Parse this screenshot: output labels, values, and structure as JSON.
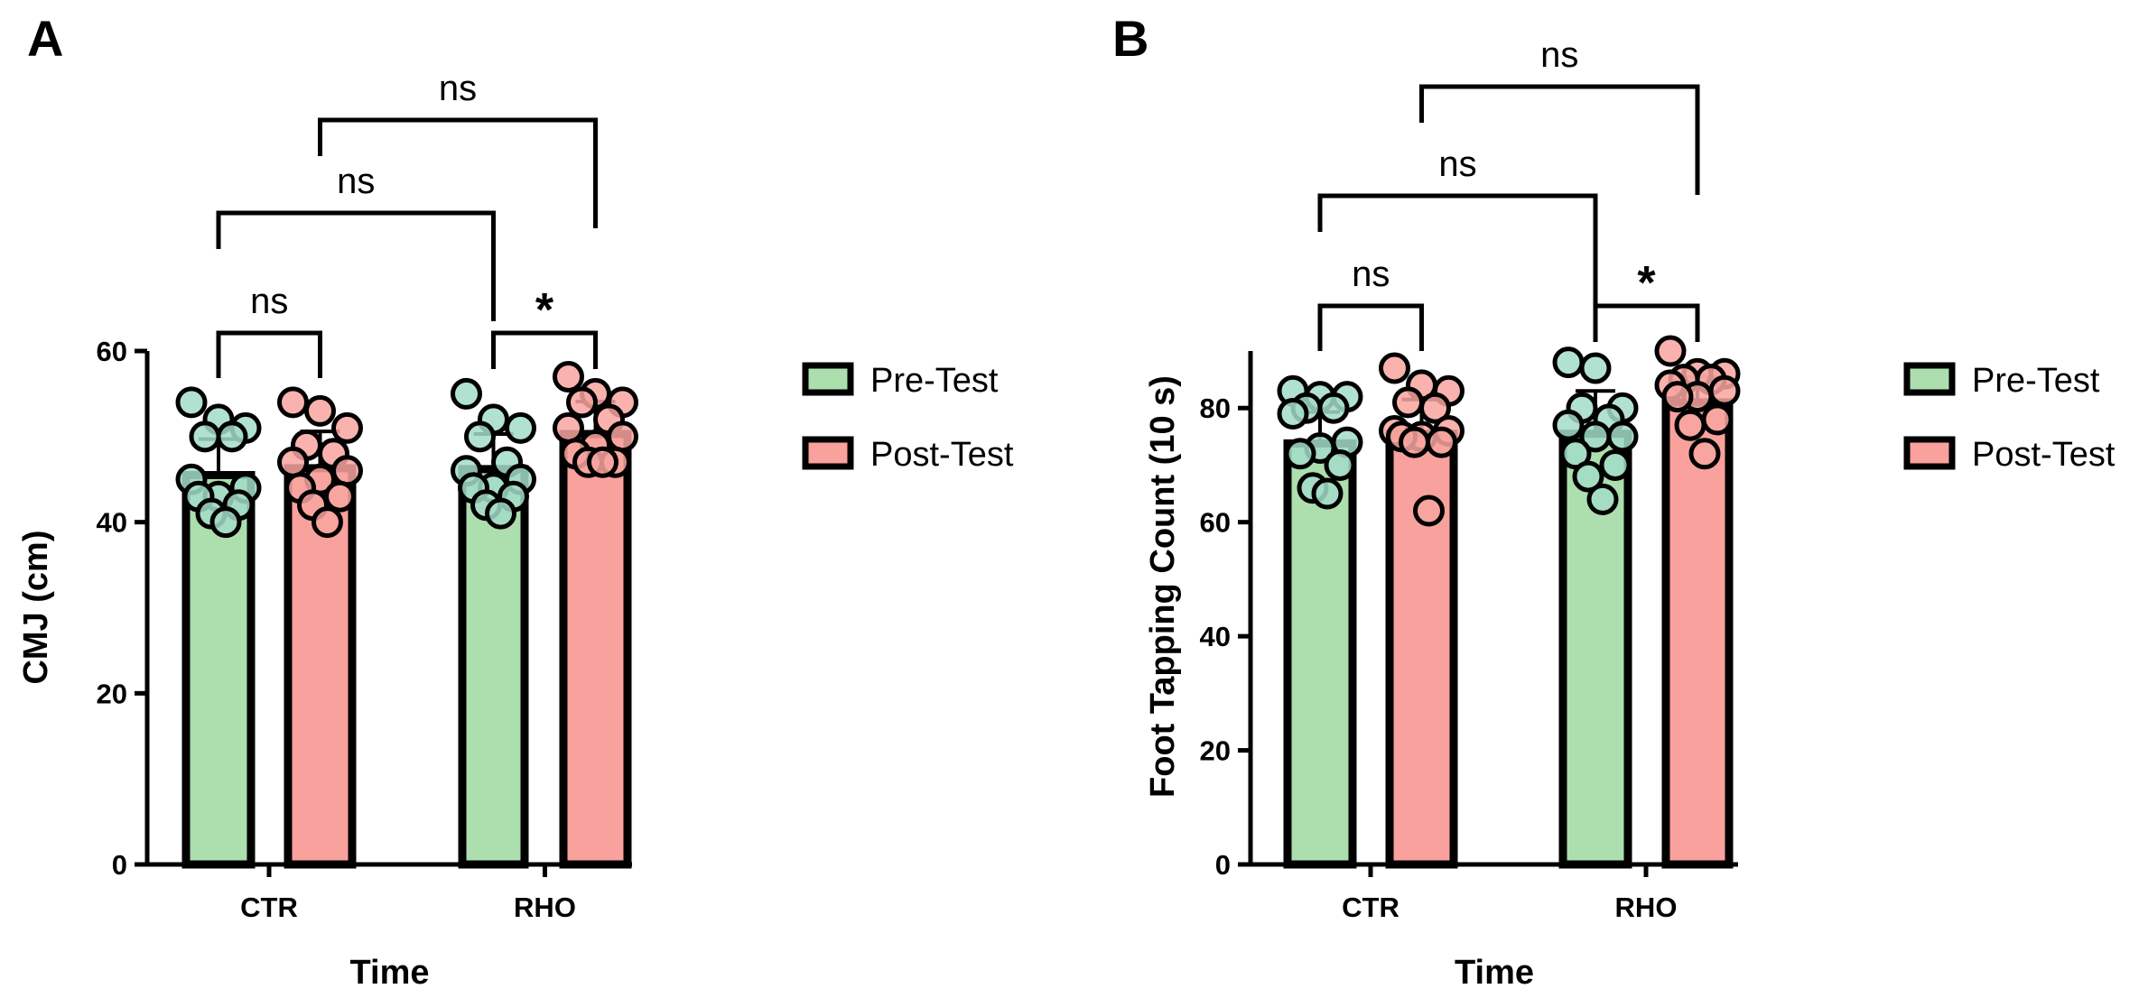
{
  "colors": {
    "pre_bar": "#acdeae",
    "post_bar": "#f9a19d",
    "pre_point": "#a3dcc8",
    "post_point": "#f8a4a0",
    "axis": "#000000"
  },
  "chart_data": [
    {
      "type": "bar",
      "panel_label": "A",
      "xlabel": "Time",
      "ylabel": "CMJ (cm)",
      "ylim": [
        0,
        60
      ],
      "yticks": [
        "0",
        "20",
        "40",
        "60"
      ],
      "yticks_values": [
        0,
        20,
        40,
        60
      ],
      "categories": [
        "CTR",
        "RHO"
      ],
      "legend": [
        "Pre-Test",
        "Post-Test"
      ],
      "legend_position": "right",
      "series": [
        {
          "name": "Pre-Test",
          "values": [
            45.5,
            46.2
          ],
          "sd": [
            4.2,
            4.1
          ],
          "points": [
            [
              54,
              52,
              51,
              50,
              50,
              45,
              44,
              43,
              43,
              42,
              41,
              40
            ],
            [
              55,
              52,
              51,
              50,
              47,
              46,
              45,
              44,
              44,
              43,
              42,
              41
            ]
          ]
        },
        {
          "name": "Post-Test",
          "values": [
            46.3,
            50.3
          ],
          "sd": [
            4.3,
            3.8
          ],
          "points": [
            [
              54,
              53,
              51,
              49,
              48,
              47,
              46,
              45,
              44,
              43,
              42,
              40
            ],
            [
              57,
              55,
              54,
              54,
              52,
              51,
              50,
              49,
              48,
              47,
              47,
              47
            ]
          ]
        }
      ],
      "comparisons": [
        {
          "from": "CTR Pre-Test",
          "to": "CTR Post-Test",
          "label": "ns"
        },
        {
          "from": "CTR Pre-Test",
          "to": "RHO Pre-Test",
          "label": "ns"
        },
        {
          "from": "CTR Post-Test",
          "to": "RHO Post-Test",
          "label": "ns"
        },
        {
          "from": "RHO Pre-Test",
          "to": "RHO Post-Test",
          "label": "*"
        }
      ]
    },
    {
      "type": "bar",
      "panel_label": "B",
      "xlabel": "Time",
      "ylabel": "Foot Tapping Count (10 s)",
      "ylim": [
        0,
        90
      ],
      "yticks": [
        "0",
        "20",
        "40",
        "60",
        "80"
      ],
      "yticks_values": [
        0,
        20,
        40,
        60,
        80
      ],
      "categories": [
        "CTR",
        "RHO"
      ],
      "legend": [
        "Pre-Test",
        "Post-Test"
      ],
      "legend_position": "right",
      "series": [
        {
          "name": "Pre-Test",
          "values": [
            73.8,
            75.5
          ],
          "sd": [
            5.5,
            7.5
          ],
          "points": [
            [
              83,
              82,
              82,
              80,
              80,
              79,
              74,
              73,
              72,
              70,
              66,
              65
            ],
            [
              88,
              87,
              80,
              80,
              78,
              77,
              75,
              75,
              72,
              70,
              68,
              64
            ]
          ]
        },
        {
          "name": "Post-Test",
          "values": [
            75.5,
            81.0
          ],
          "sd": [
            6.0,
            4.5
          ],
          "points": [
            [
              87,
              84,
              83,
              81,
              80,
              76,
              76,
              75,
              75,
              74,
              74,
              62
            ],
            [
              90,
              86,
              86,
              85,
              85,
              84,
              83,
              82,
              82,
              78,
              77,
              72
            ]
          ]
        }
      ],
      "comparisons": [
        {
          "from": "CTR Pre-Test",
          "to": "CTR Post-Test",
          "label": "ns"
        },
        {
          "from": "CTR Pre-Test",
          "to": "RHO Pre-Test",
          "label": "ns"
        },
        {
          "from": "CTR Post-Test",
          "to": "RHO Post-Test",
          "label": "ns"
        },
        {
          "from": "RHO Pre-Test",
          "to": "RHO Post-Test",
          "label": "*"
        }
      ]
    }
  ]
}
